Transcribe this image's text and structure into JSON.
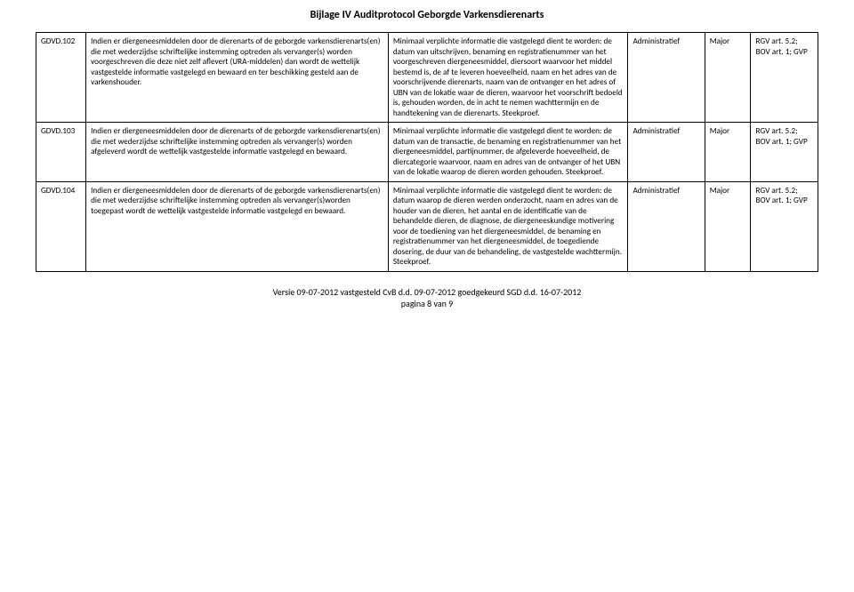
{
  "document": {
    "title": "Bijlage IV Auditprotocol Geborgde Varkensdierenarts",
    "footer_line1": "Versie 09-07-2012 vastgesteld CvB d.d. 09-07-2012 goedgekeurd SGD d.d. 16-07-2012",
    "footer_line2": "pagina 8 van 9"
  },
  "rows": [
    {
      "code": "GDVD.102",
      "requirement": "Indien er diergeneesmiddelen door de dierenarts of de geborgde varkensdierenarts(en) die met wederzijdse schriftelijke instemming optreden als vervanger(s) worden voorgeschreven die deze niet zelf aflevert (URA-middelen) dan wordt de wettelijk vastgestelde informatie vastgelegd en bewaard en ter beschikking gesteld aan de varkenshouder.",
      "how": "Minimaal verplichte informatie die vastgelegd dient te worden: de datum van uitschrijven, benaming en registratienummer van het voorgeschreven diergeneesmiddel, diersoort waarvoor het middel bestemd is, de af te leveren hoeveelheid, naam en het adres van de voorschrijvende dierenarts, naam van de ontvanger en het adres of UBN van de lokatie waar de dieren, waarvoor het voorschrift bedoeld is, gehouden worden, de in acht te nemen wachttermijn en de handtekening van de dierenarts. Steekproef.",
      "type": "Administratief",
      "weight": "Major",
      "reference": "RGV art. 5.2; BOV art. 1; GVP"
    },
    {
      "code": "GDVD.103",
      "requirement": "Indien er diergeneesmiddelen door de dierenarts of de geborgde varkensdierenarts(en) die met wederzijdse schriftelijke instemming optreden als vervanger(s) worden afgeleverd wordt de wettelijk vastgestelde informatie vastgelegd en bewaard.",
      "how": "Minimaal verplichte informatie die vastgelegd dient te worden: de datum van de transactie, de benaming en registratienummer van het diergeneesmiddel, partijnummer, de afgeleverde hoeveelheid, de diercategorie waarvoor, naam en adres van de ontvanger of het UBN van de lokatie waarop de dieren worden gehouden. Steekproef.",
      "type": "Administratief",
      "weight": "Major",
      "reference": "RGV art. 5.2; BOV art. 1; GVP"
    },
    {
      "code": "GDVD.104",
      "requirement": "Indien er diergeneesmiddelen door de dierenarts of de geborgde varkensdierenarts(en) die met wederzijdse schriftelijke instemming optreden als vervanger(s)worden toegepast wordt de wettelijk vastgestelde informatie vastgelegd en bewaard.",
      "how": "Minimaal verplichte informatie die vastgelegd dient te worden: de datum waarop de dieren werden onderzocht, naam en adres van de houder van de dieren, het aantal en de identificatie van de behandelde dieren, de diagnose, de diergeneeskundige motivering voor de toediening van het diergeneesmiddel, de benaming en registratienummer van het diergeneesmiddel, de toegediende dosering, de duur van de behandeling, de vastgestelde wachttermijn. Steekproef.",
      "type": "Administratief",
      "weight": "Major",
      "reference": "RGV art. 5.2; BOV art. 1; GVP"
    }
  ]
}
